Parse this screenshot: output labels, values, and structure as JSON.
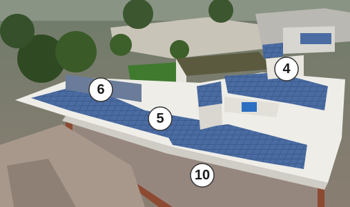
{
  "markers": [
    {
      "label": "6"
    },
    {
      "label": "5"
    },
    {
      "label": "4"
    },
    {
      "label": "10"
    }
  ]
}
